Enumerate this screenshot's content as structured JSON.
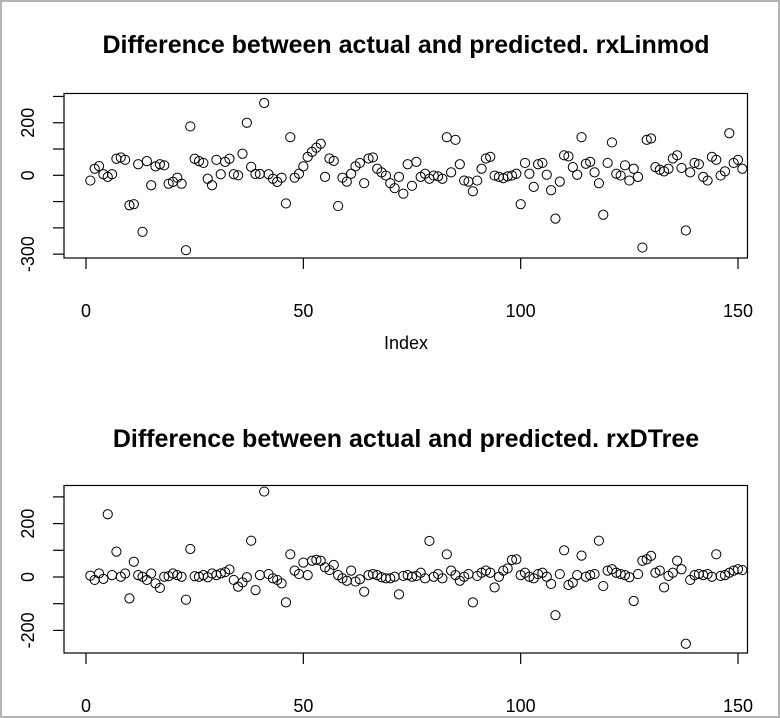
{
  "page": {
    "background_color": "#ffffff",
    "border_color": "#b4b4b4"
  },
  "chart_data": [
    {
      "type": "scatter",
      "title": "Difference between actual and predicted. rxLinmod",
      "xlabel": "Index",
      "ylabel": "",
      "marker": "open-circle",
      "marker_color": "#000000",
      "grid": "off",
      "xlim": [
        -5,
        152
      ],
      "ylim": [
        -314,
        309
      ],
      "x_ticks": [
        0,
        50,
        100,
        150
      ],
      "y_ticks": [
        300,
        200,
        100,
        0,
        -100,
        -200,
        -300
      ],
      "y_labeled_ticks": [
        {
          "value": 200,
          "label": "200"
        },
        {
          "value": 0,
          "label": "0"
        },
        {
          "value": -300,
          "label": "-300"
        }
      ],
      "x_start": 1,
      "values": [
        -20,
        25,
        35,
        4,
        -6,
        4,
        63,
        68,
        59,
        -114,
        -110,
        42,
        -215,
        54,
        -38,
        34,
        42,
        38,
        -32,
        -25,
        -9,
        -32,
        -285,
        186,
        63,
        54,
        47,
        -13,
        -38,
        59,
        4,
        51,
        63,
        4,
        0,
        82,
        200,
        32,
        5,
        5,
        275,
        4,
        -13,
        -25,
        -9,
        -107,
        145,
        -9,
        6,
        34,
        70,
        89,
        105,
        120,
        -6,
        64,
        55,
        -117,
        -9,
        -24,
        6,
        34,
        47,
        -30,
        64,
        68,
        25,
        11,
        -1,
        -30,
        -49,
        -6,
        -70,
        42,
        -40,
        51,
        -6,
        6,
        -13,
        -1,
        -4,
        -13,
        145,
        11,
        135,
        42,
        -20,
        -24,
        -61,
        -20,
        25,
        64,
        70,
        -1,
        -6,
        -11,
        -4,
        -1,
        6,
        -110,
        47,
        6,
        -44,
        42,
        47,
        2,
        -57,
        -165,
        -24,
        76,
        72,
        31,
        2,
        145,
        44,
        51,
        11,
        -30,
        -150,
        47,
        125,
        6,
        -1,
        38,
        -20,
        25,
        -6,
        -275,
        135,
        140,
        31,
        21,
        15,
        25,
        64,
        76,
        28,
        -210,
        11,
        47,
        42,
        -6,
        -20,
        70,
        59,
        -1,
        15,
        160,
        47,
        59,
        25
      ]
    },
    {
      "type": "scatter",
      "title": "Difference between actual and predicted. rxDTree",
      "xlabel": "",
      "ylabel": "",
      "marker": "open-circle",
      "marker_color": "#000000",
      "grid": "off",
      "xlim": [
        -5,
        152
      ],
      "ylim": [
        -285,
        343
      ],
      "x_ticks": [
        0,
        50,
        100,
        150
      ],
      "y_ticks": [
        300,
        200,
        100,
        0,
        -100,
        -200
      ],
      "y_labeled_ticks": [
        {
          "value": 200,
          "label": "200"
        },
        {
          "value": 0,
          "label": "0"
        },
        {
          "value": -200,
          "label": "-200"
        }
      ],
      "x_start": 1,
      "values": [
        5,
        -11,
        13,
        -7,
        235,
        7,
        95,
        1,
        13,
        -80,
        57,
        7,
        1,
        -11,
        13,
        -24,
        -41,
        1,
        3,
        13,
        7,
        1,
        -85,
        105,
        3,
        1,
        7,
        -1,
        13,
        7,
        13,
        18,
        28,
        -11,
        -36,
        -20,
        -1,
        136,
        -49,
        7,
        320,
        11,
        -5,
        -11,
        -24,
        -95,
        85,
        24,
        11,
        54,
        7,
        61,
        64,
        61,
        36,
        26,
        45,
        7,
        -5,
        -14,
        24,
        -17,
        -9,
        -55,
        7,
        11,
        7,
        -1,
        -5,
        -5,
        1,
        -65,
        4,
        7,
        1,
        4,
        16,
        -5,
        135,
        1,
        11,
        -5,
        85,
        24,
        7,
        -14,
        1,
        11,
        -95,
        4,
        16,
        24,
        16,
        -39,
        1,
        24,
        32,
        64,
        66,
        7,
        16,
        1,
        -5,
        11,
        16,
        1,
        -26,
        -143,
        11,
        100,
        -30,
        -21,
        7,
        80,
        1,
        7,
        11,
        136,
        -34,
        24,
        29,
        16,
        11,
        7,
        -1,
        -90,
        11,
        61,
        66,
        79,
        16,
        24,
        -39,
        4,
        16,
        61,
        29,
        -250,
        -11,
        7,
        11,
        7,
        11,
        1,
        85,
        4,
        7,
        16,
        24,
        29,
        26
      ]
    }
  ]
}
